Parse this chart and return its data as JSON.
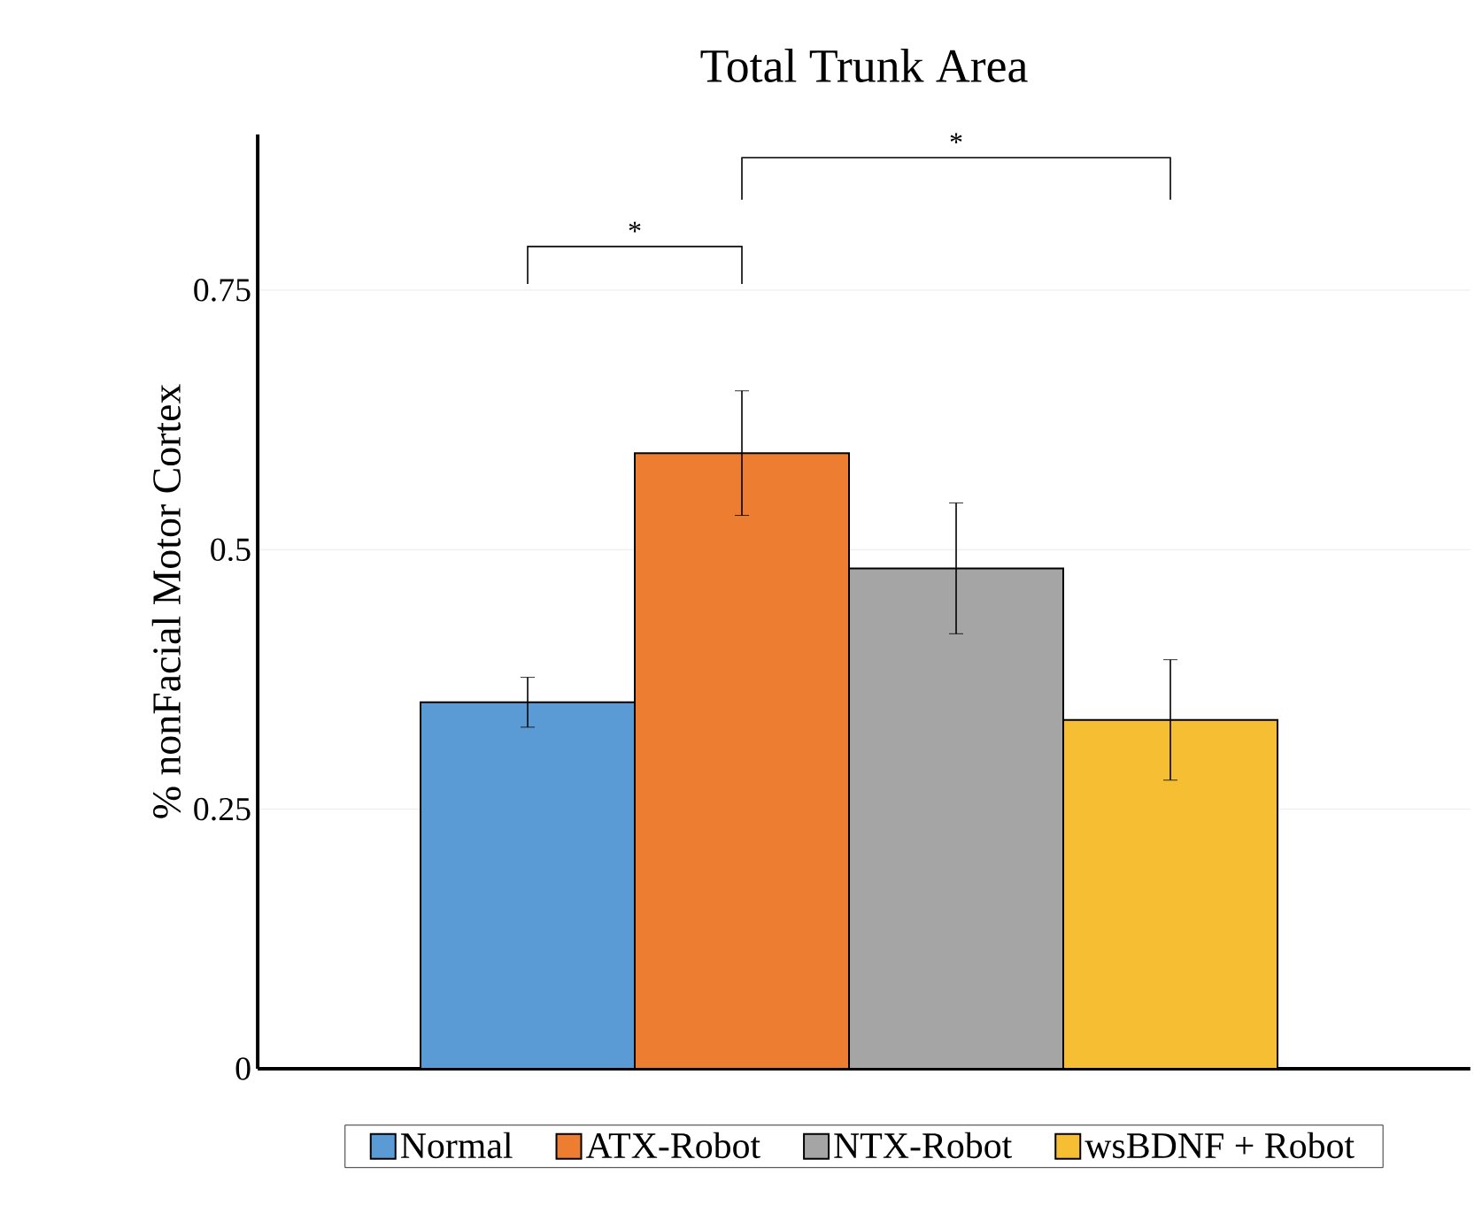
{
  "chart_data": {
    "type": "bar",
    "title": "Total Trunk Area",
    "ylabel": "% nonFacial Motor Cortex",
    "categories": [
      null
    ],
    "series": [
      {
        "name": "Normal",
        "color": "#5b9bd5",
        "values": [
          0.353
        ],
        "errors": [
          0.024
        ]
      },
      {
        "name": "ATX-Robot",
        "color": "#ed7d31",
        "values": [
          0.593
        ],
        "errors": [
          0.06
        ]
      },
      {
        "name": "NTX-Robot",
        "color": "#a5a5a5",
        "values": [
          0.482
        ],
        "errors": [
          0.063
        ]
      },
      {
        "name": "wsBDNF + Robot",
        "color": "#f6bf33",
        "values": [
          0.336
        ],
        "errors": [
          0.058
        ]
      }
    ],
    "ylim": [
      0,
      0.9
    ],
    "yticks": [
      0,
      0.25,
      0.5,
      0.75
    ],
    "grid": "y",
    "legend": "bottom",
    "annotations": [
      "*",
      "*"
    ]
  }
}
